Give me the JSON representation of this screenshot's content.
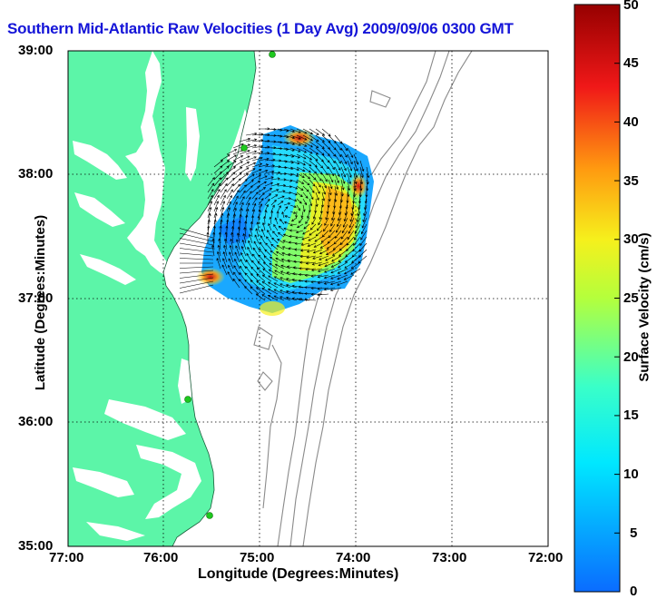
{
  "title": "Southern Mid-Atlantic Raw Velocities (1 Day Avg) 2009/09/06 0300 GMT",
  "map": {
    "xlabel": "Longitude (Degrees:Minutes)",
    "ylabel": "Latitude (Degrees:Minutes)",
    "x_ticks": [
      "77:00",
      "76:00",
      "75:00",
      "74:00",
      "73:00",
      "72:00"
    ],
    "y_ticks": [
      "39:00",
      "38:00",
      "37:00",
      "36:00",
      "35:00"
    ],
    "colors": {
      "land": "#5cf5a8",
      "grid": "#000000",
      "bathymetry": "#8a8a8a",
      "stations": "#1ec81e",
      "vectors": "#000000",
      "title": "#1414d8"
    }
  },
  "colorbar": {
    "label": "Surface Velocity (cm/s)",
    "ticks": [
      "50",
      "45",
      "40",
      "35",
      "30",
      "25",
      "20",
      "15",
      "10",
      "5",
      "0"
    ],
    "min": 0,
    "max": 50
  }
}
